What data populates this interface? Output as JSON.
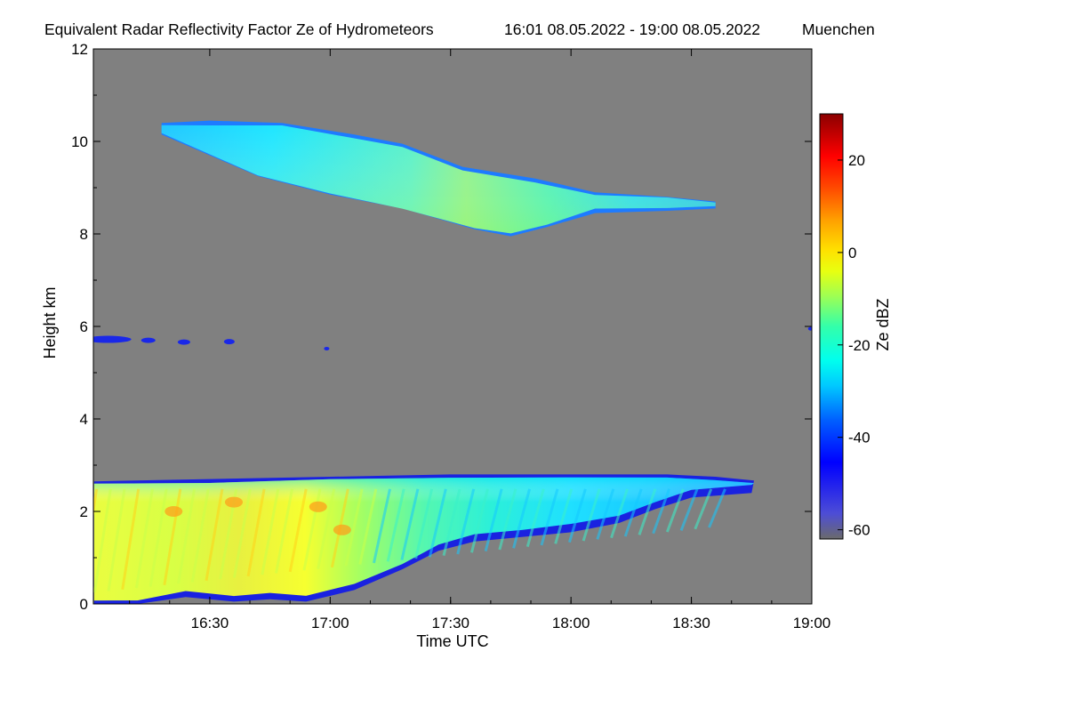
{
  "chart_data": {
    "type": "heatmap",
    "title": "Equivalent Radar Reflectivity Factor Ze of Hydrometeors",
    "period": "16:01 08.05.2022 - 19:00 08.05.2022",
    "location": "Muenchen",
    "xlabel": "Time UTC",
    "ylabel": "Height km",
    "x_range": [
      "16:01",
      "19:00"
    ],
    "x_ticks": [
      "16:30",
      "17:00",
      "17:30",
      "18:00",
      "18:30",
      "19:00"
    ],
    "y_range": [
      0,
      12
    ],
    "y_ticks": [
      "0",
      "2",
      "4",
      "6",
      "8",
      "10",
      "12"
    ],
    "colorbar": {
      "label": "Ze dBZ",
      "range": [
        -62,
        30
      ],
      "ticks": [
        "-60",
        "-40",
        "-20",
        "0",
        "20"
      ]
    },
    "background_color": "#808080",
    "layers": [
      {
        "name": "low precipitation layer",
        "t_start": "16:01",
        "t_end": "18:46",
        "base_km_profile": [
          [
            16.02,
            0.05
          ],
          [
            16.2,
            0.1
          ],
          [
            16.4,
            0.3
          ],
          [
            16.6,
            0.2
          ],
          [
            16.75,
            0.25
          ],
          [
            16.9,
            0.2
          ],
          [
            17.1,
            0.45
          ],
          [
            17.3,
            0.9
          ],
          [
            17.45,
            1.3
          ],
          [
            17.6,
            1.5
          ],
          [
            17.8,
            1.6
          ],
          [
            18.0,
            1.7
          ],
          [
            18.2,
            1.9
          ],
          [
            18.35,
            2.2
          ],
          [
            18.5,
            2.45
          ],
          [
            18.75,
            2.55
          ]
        ],
        "top_km_profile": [
          [
            16.02,
            2.6
          ],
          [
            16.5,
            2.65
          ],
          [
            17.0,
            2.7
          ],
          [
            17.5,
            2.75
          ],
          [
            18.0,
            2.75
          ],
          [
            18.4,
            2.75
          ],
          [
            18.6,
            2.7
          ],
          [
            18.76,
            2.62
          ]
        ],
        "ze_range_dbz": [
          -50,
          0
        ]
      },
      {
        "name": "upper cloud layer",
        "t_start": "16:18",
        "t_end": "18:38",
        "base_km_profile": [
          [
            16.3,
            10.2
          ],
          [
            16.7,
            9.3
          ],
          [
            17.0,
            8.9
          ],
          [
            17.3,
            8.6
          ],
          [
            17.6,
            8.15
          ],
          [
            17.75,
            8.0
          ],
          [
            17.9,
            8.2
          ],
          [
            18.1,
            8.5
          ],
          [
            18.4,
            8.55
          ],
          [
            18.6,
            8.6
          ]
        ],
        "top_km_profile": [
          [
            16.3,
            10.35
          ],
          [
            16.5,
            10.4
          ],
          [
            16.8,
            10.35
          ],
          [
            17.1,
            10.1
          ],
          [
            17.3,
            9.9
          ],
          [
            17.55,
            9.4
          ],
          [
            17.85,
            9.15
          ],
          [
            18.1,
            8.85
          ],
          [
            18.4,
            8.75
          ],
          [
            18.6,
            8.65
          ]
        ],
        "ze_range_dbz": [
          -45,
          -10
        ]
      },
      {
        "name": "isolated echoes",
        "height_km": 5.7,
        "t_start": "16:01",
        "t_end": "17:05",
        "ze_range_dbz": [
          -45,
          -35
        ]
      }
    ]
  }
}
